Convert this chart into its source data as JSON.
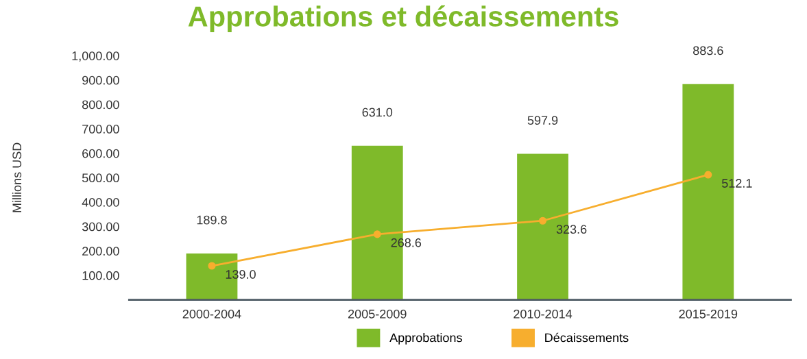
{
  "chart_data": {
    "type": "bar",
    "title": "Approbations et décaissements",
    "ylabel": "Millions USD",
    "categories": [
      "2000-2004",
      "2005-2009",
      "2010-2014",
      "2015-2019"
    ],
    "series": [
      {
        "name": "Approbations",
        "color": "#7fba2a",
        "values": [
          189.8,
          631.0,
          597.9,
          883.6
        ],
        "value_labels": [
          "189.8",
          "631.0",
          "597.9",
          "883.6"
        ]
      },
      {
        "name": "Décaissements",
        "type": "line",
        "color": "#f7ae2e",
        "marker": "circle",
        "values": [
          139.0,
          268.6,
          323.6,
          512.1
        ],
        "value_labels": [
          "139.0",
          "268.6",
          "323.6",
          "512.1"
        ]
      }
    ],
    "ylim": [
      0,
      1000
    ],
    "yticks": [
      {
        "value": 100,
        "label": "100.00"
      },
      {
        "value": 200,
        "label": "200.00"
      },
      {
        "value": 300,
        "label": "300.00"
      },
      {
        "value": 400,
        "label": "400.00"
      },
      {
        "value": 500,
        "label": "500.00"
      },
      {
        "value": 600,
        "label": "600.00"
      },
      {
        "value": 700,
        "label": "700.00"
      },
      {
        "value": 800,
        "label": "800.00"
      },
      {
        "value": 900,
        "label": "900.00"
      },
      {
        "value": 1000,
        "label": "1,000.00"
      }
    ],
    "grid": false,
    "legend": "bottom"
  }
}
